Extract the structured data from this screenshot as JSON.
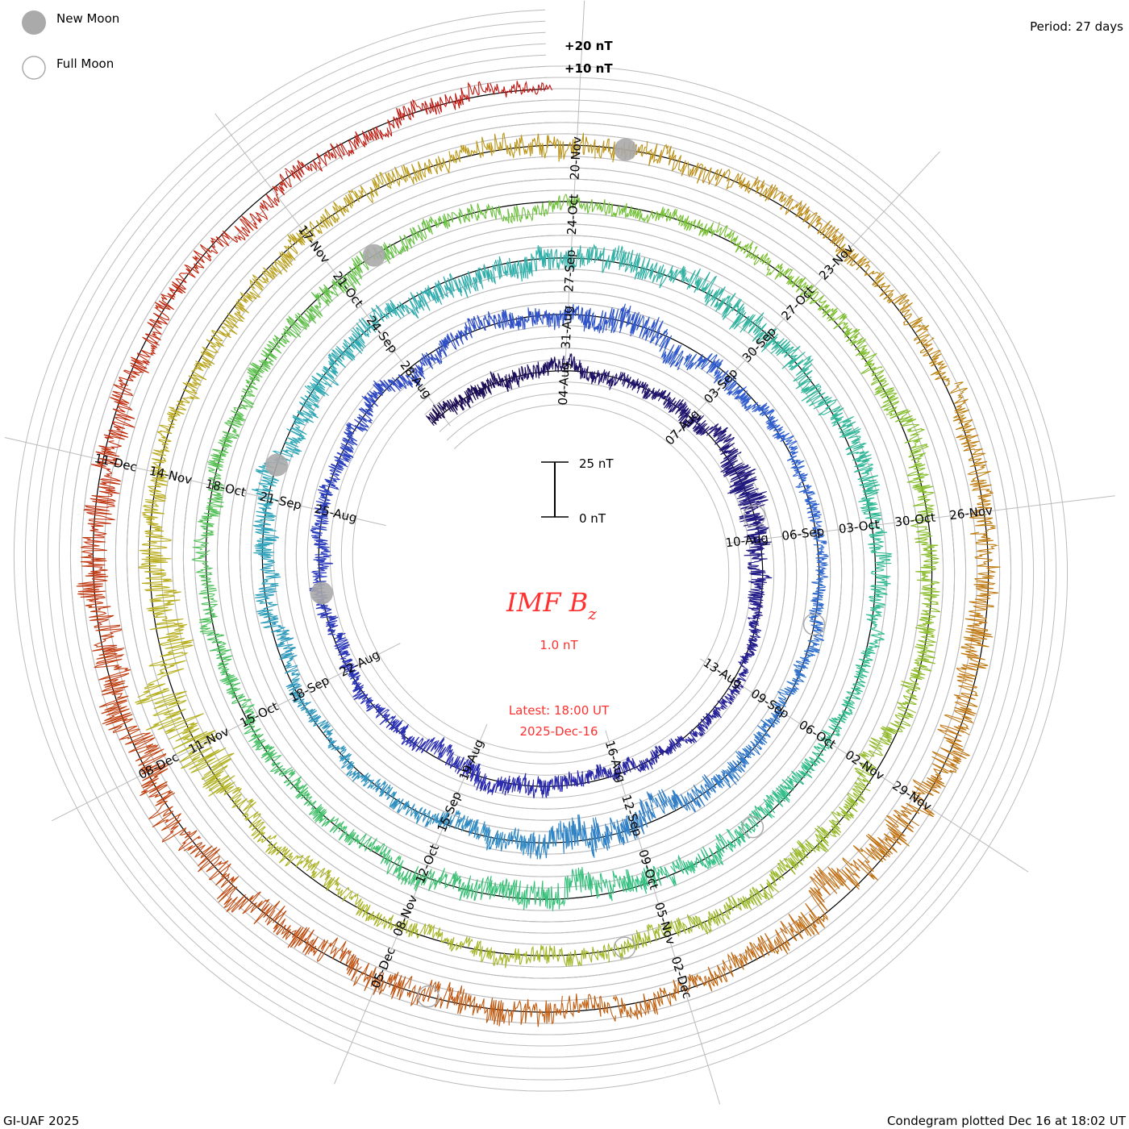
{
  "legend": {
    "new_moon": "New Moon",
    "full_moon": "Full Moon"
  },
  "period_label": "Period: 27 days",
  "footer": {
    "left": "GI-UAF 2025",
    "right": "Condegram plotted Dec 16 at 18:02 UT"
  },
  "center": {
    "title": "IMF B",
    "title_sub": "z",
    "value": "1.0 nT",
    "latest": "Latest: 18:00 UT",
    "date": "2025-Dec-16"
  },
  "chart_data": {
    "type": "line",
    "subtype": "condegram-spiral",
    "title": "IMF Bz",
    "period_days": 27,
    "start_date": "2025-Aug-01",
    "end_date": "2025-Dec-16 18:00",
    "latest_value_nT": 1.0,
    "scale_bar": {
      "top": "25 nT",
      "bottom": "0 nT",
      "value_nT": 25
    },
    "offset_labels": [
      "+20 nT",
      "+10 nT"
    ],
    "date_labels": [
      "04-Aug",
      "07-Aug",
      "10-Aug",
      "13-Aug",
      "16-Aug",
      "19-Aug",
      "22-Aug",
      "25-Aug",
      "28-Aug",
      "31-Aug",
      "03-Sep",
      "06-Sep",
      "09-Sep",
      "12-Sep",
      "15-Sep",
      "18-Sep",
      "21-Sep",
      "24-Sep",
      "27-Sep",
      "30-Sep",
      "03-Oct",
      "06-Oct",
      "09-Oct",
      "12-Oct",
      "15-Oct",
      "18-Oct",
      "21-Oct",
      "24-Oct",
      "27-Oct",
      "30-Oct",
      "02-Nov",
      "05-Nov",
      "08-Nov",
      "11-Nov",
      "14-Nov",
      "17-Nov",
      "20-Nov",
      "23-Nov",
      "26-Nov",
      "29-Nov",
      "02-Dec",
      "05-Dec",
      "08-Dec",
      "11-Dec"
    ],
    "new_moon_dates": [
      "23-Aug",
      "21-Sep",
      "21-Oct",
      "20-Nov"
    ],
    "full_moon_dates": [
      "09-Aug",
      "07-Sep",
      "07-Oct",
      "05-Nov",
      "04-Dec"
    ],
    "activity_nT_by_day_since_04Aug": [
      [
        -3.3,
        5
      ],
      [
        2,
        4
      ],
      [
        4,
        6
      ],
      [
        5,
        9
      ],
      [
        6,
        7
      ],
      [
        8,
        3
      ],
      [
        12,
        4
      ],
      [
        15,
        6
      ],
      [
        17,
        4
      ],
      [
        24,
        5
      ],
      [
        27,
        5
      ],
      [
        28,
        9
      ],
      [
        29,
        7
      ],
      [
        31,
        4
      ],
      [
        36,
        4
      ],
      [
        40,
        9
      ],
      [
        41,
        6
      ],
      [
        44,
        4
      ],
      [
        47,
        6
      ],
      [
        55,
        7
      ],
      [
        58,
        7
      ],
      [
        62,
        4
      ],
      [
        68,
        8
      ],
      [
        70,
        5
      ],
      [
        75,
        5
      ],
      [
        78,
        6
      ],
      [
        82,
        4
      ],
      [
        85,
        6
      ],
      [
        86,
        6
      ],
      [
        98,
        5
      ],
      [
        99,
        14
      ],
      [
        100,
        12
      ],
      [
        102,
        5
      ],
      [
        108,
        6
      ],
      [
        112,
        5
      ],
      [
        116,
        8
      ],
      [
        118,
        10
      ],
      [
        120,
        6
      ],
      [
        122,
        8
      ],
      [
        124,
        8
      ],
      [
        127,
        10
      ],
      [
        130,
        6
      ],
      [
        134,
        5
      ],
      [
        134.75,
        3
      ]
    ],
    "colors": [
      "#1a0a50",
      "#2a2ab0",
      "#3060d0",
      "#30a8b8",
      "#30c080",
      "#7ac030",
      "#b8b020",
      "#c07010",
      "#c01010"
    ]
  }
}
